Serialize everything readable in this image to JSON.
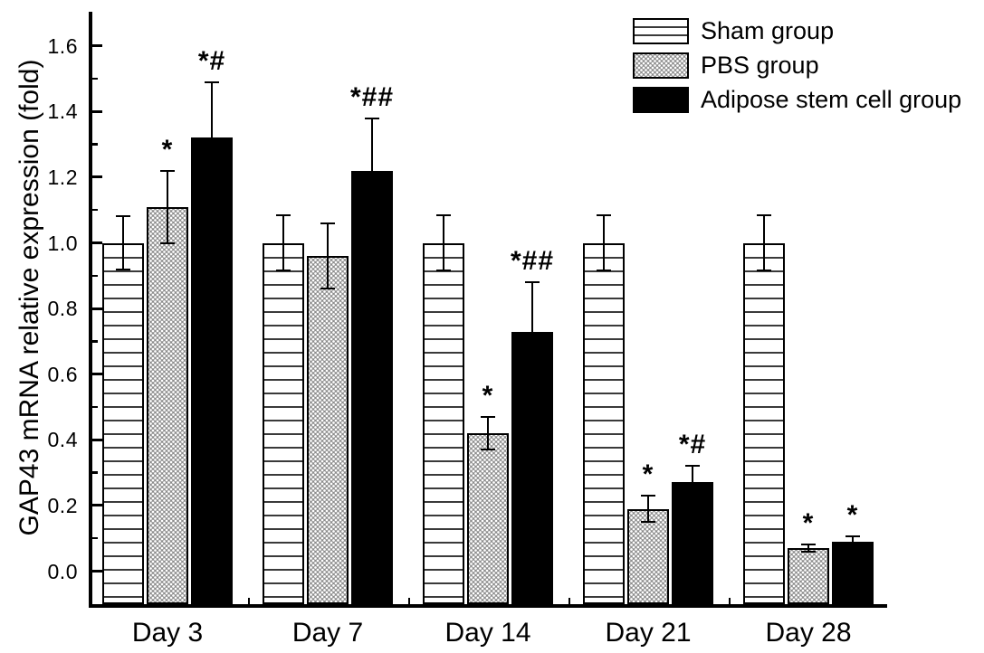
{
  "chart_data": {
    "type": "bar",
    "title": "",
    "xlabel": "",
    "ylabel": "GAP43 mRNA relative expression (fold)",
    "categories": [
      "Day 3",
      "Day 7",
      "Day 14",
      "Day 21",
      "Day 28"
    ],
    "ylim": [
      -0.1,
      1.7
    ],
    "ytick_values": [
      0.0,
      0.2,
      0.4,
      0.6,
      0.8,
      1.0,
      1.2,
      1.4,
      1.6
    ],
    "ytick_labels": [
      "0.0",
      "0.2",
      "0.4",
      "0.6",
      "0.8",
      "1.0",
      "1.2",
      "1.4",
      "1.6"
    ],
    "grid": false,
    "legend_position": "top-right",
    "series": [
      {
        "name": "Sham group",
        "pattern": "horizontal-lines",
        "values": [
          1.0,
          1.0,
          1.0,
          1.0,
          1.0
        ],
        "errors": [
          0.08,
          0.085,
          0.085,
          0.085,
          0.085
        ],
        "sig_markers": [
          "",
          "",
          "",
          "",
          ""
        ]
      },
      {
        "name": "PBS group",
        "pattern": "crosshatch-dots",
        "values": [
          1.11,
          0.96,
          0.42,
          0.19,
          0.07
        ],
        "errors": [
          0.11,
          0.1,
          0.05,
          0.04,
          0.012
        ],
        "sig_markers": [
          "*",
          "",
          "*",
          "*",
          "*"
        ]
      },
      {
        "name": "Adipose stem cell group",
        "pattern": "solid-black",
        "values": [
          1.32,
          1.22,
          0.73,
          0.27,
          0.09
        ],
        "errors": [
          0.17,
          0.16,
          0.15,
          0.05,
          0.015
        ],
        "sig_markers": [
          "*#",
          "*##",
          "*##",
          "*#",
          "*"
        ]
      }
    ],
    "colors": {
      "foreground": "#000000",
      "background": "#ffffff",
      "pbs_fill": "#8d8d8d"
    }
  }
}
